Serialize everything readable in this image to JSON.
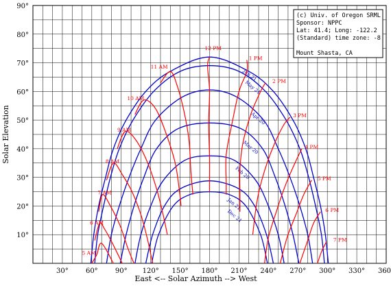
{
  "chart_data": {
    "type": "line",
    "xlabel": "East <-- Solar Azimuth --> West",
    "ylabel": "Solar Elevation",
    "xlim": [
      0,
      360
    ],
    "ylim": [
      0,
      90
    ],
    "x_ticks": [
      30,
      60,
      90,
      120,
      150,
      180,
      210,
      240,
      270,
      300,
      330,
      360
    ],
    "x_tick_labels": [
      "30°",
      "60°",
      "90°",
      "120°",
      "150°",
      "180°",
      "210°",
      "240°",
      "270°",
      "300°",
      "330°",
      "360°"
    ],
    "y_ticks": [
      10,
      20,
      30,
      40,
      50,
      60,
      70,
      80,
      90
    ],
    "y_tick_labels": [
      "10°",
      "20°",
      "30°",
      "40°",
      "50°",
      "60°",
      "70°",
      "80°",
      "90°"
    ],
    "grid": true,
    "info_box": [
      "(c) Univ. of Oregon SRML",
      "Sponsor: NPPC",
      "Lat: 41.4; Long: -122.2",
      "(Standard) time zone: -8",
      "",
      "Mount Shasta, CA"
    ],
    "date_series": [
      {
        "name": "Jun 21",
        "label_at": [
          214,
          67
        ],
        "points": [
          [
            59,
            0
          ],
          [
            62,
            10
          ],
          [
            67,
            20
          ],
          [
            74,
            30
          ],
          [
            82,
            40
          ],
          [
            95,
            50
          ],
          [
            115,
            60
          ],
          [
            140,
            67
          ],
          [
            180,
            72
          ],
          [
            220,
            67
          ],
          [
            245,
            60
          ],
          [
            265,
            50
          ],
          [
            278,
            40
          ],
          [
            286,
            30
          ],
          [
            293,
            20
          ],
          [
            298,
            10
          ],
          [
            301,
            0
          ]
        ]
      },
      {
        "name": "May 21",
        "label_at": [
          216,
          63
        ],
        "points": [
          [
            63,
            0
          ],
          [
            66,
            10
          ],
          [
            72,
            20
          ],
          [
            79,
            30
          ],
          [
            88,
            40
          ],
          [
            102,
            50
          ],
          [
            123,
            60
          ],
          [
            150,
            67
          ],
          [
            180,
            69
          ],
          [
            210,
            67
          ],
          [
            237,
            60
          ],
          [
            258,
            50
          ],
          [
            272,
            40
          ],
          [
            281,
            30
          ],
          [
            288,
            20
          ],
          [
            294,
            10
          ],
          [
            297,
            0
          ]
        ]
      },
      {
        "name": "Apr 20",
        "label_at": [
          222,
          52
        ],
        "points": [
          [
            75,
            0
          ],
          [
            80,
            10
          ],
          [
            88,
            20
          ],
          [
            98,
            30
          ],
          [
            110,
            40
          ],
          [
            125,
            50
          ],
          [
            152,
            58
          ],
          [
            180,
            60.5
          ],
          [
            208,
            58
          ],
          [
            235,
            50
          ],
          [
            250,
            40
          ],
          [
            262,
            30
          ],
          [
            272,
            20
          ],
          [
            280,
            10
          ],
          [
            285,
            0
          ]
        ]
      },
      {
        "name": "Mar 20",
        "label_at": [
          214,
          42
        ],
        "points": [
          [
            89,
            0
          ],
          [
            95,
            10
          ],
          [
            103,
            20
          ],
          [
            113,
            30
          ],
          [
            126,
            40
          ],
          [
            148,
            47
          ],
          [
            180,
            49
          ],
          [
            212,
            47
          ],
          [
            234,
            40
          ],
          [
            247,
            30
          ],
          [
            257,
            20
          ],
          [
            265,
            10
          ],
          [
            271,
            0
          ]
        ]
      },
      {
        "name": "Feb 20",
        "label_at": [
          206,
          33
        ],
        "points": [
          [
            104,
            0
          ],
          [
            110,
            10
          ],
          [
            120,
            20
          ],
          [
            133,
            29
          ],
          [
            155,
            36
          ],
          [
            180,
            37.5
          ],
          [
            205,
            36
          ],
          [
            227,
            29
          ],
          [
            240,
            20
          ],
          [
            250,
            10
          ],
          [
            256,
            0
          ]
        ]
      },
      {
        "name": "Jan 21",
        "label_at": [
          198,
          22
        ],
        "points": [
          [
            115,
            0
          ],
          [
            122,
            10
          ],
          [
            134,
            20
          ],
          [
            150,
            26
          ],
          [
            180,
            28.8
          ],
          [
            210,
            26
          ],
          [
            226,
            20
          ],
          [
            238,
            10
          ],
          [
            245,
            0
          ]
        ]
      },
      {
        "name": "Dec 21",
        "label_at": [
          198,
          18
        ],
        "points": [
          [
            121,
            0
          ],
          [
            128,
            10
          ],
          [
            143,
            20
          ],
          [
            160,
            24
          ],
          [
            180,
            25
          ],
          [
            200,
            24
          ],
          [
            217,
            20
          ],
          [
            232,
            10
          ],
          [
            239,
            0
          ]
        ]
      }
    ],
    "hour_series": [
      {
        "name": "5 AM",
        "label_at": [
          50,
          3
        ],
        "points": [
          [
            60,
            0
          ],
          [
            65,
            3
          ],
          [
            70,
            7
          ],
          [
            82,
            0
          ]
        ]
      },
      {
        "name": "6 AM",
        "label_at": [
          58,
          13.5
        ],
        "points": [
          [
            63,
            8
          ],
          [
            68,
            14
          ],
          [
            73,
            12
          ],
          [
            81,
            7
          ],
          [
            91,
            0
          ]
        ]
      },
      {
        "name": "7 AM",
        "label_at": [
          66,
          24
        ],
        "points": [
          [
            67,
            18
          ],
          [
            71,
            24
          ],
          [
            79,
            20
          ],
          [
            89,
            13
          ],
          [
            97,
            5
          ],
          [
            103,
            0
          ]
        ]
      },
      {
        "name": "8 AM",
        "label_at": [
          74,
          35
        ],
        "points": [
          [
            75,
            29
          ],
          [
            82,
            35
          ],
          [
            91,
            31
          ],
          [
            101,
            25
          ],
          [
            110,
            17
          ],
          [
            117,
            8
          ],
          [
            122,
            0
          ]
        ]
      },
      {
        "name": "9 AM",
        "label_at": [
          86,
          46
        ],
        "points": [
          [
            86,
            40
          ],
          [
            94,
            46
          ],
          [
            105,
            43
          ],
          [
            117,
            35
          ],
          [
            126,
            26
          ],
          [
            132,
            18
          ],
          [
            137,
            10
          ]
        ]
      },
      {
        "name": "10 AM",
        "label_at": [
          96,
          57
        ],
        "points": [
          [
            104,
            52
          ],
          [
            113,
            57
          ],
          [
            125,
            54
          ],
          [
            136,
            45
          ],
          [
            145,
            35
          ],
          [
            149,
            26
          ],
          [
            151,
            20
          ]
        ]
      },
      {
        "name": "11 AM",
        "label_at": [
          120,
          68
        ],
        "points": [
          [
            130,
            63
          ],
          [
            140,
            67
          ],
          [
            147,
            62
          ],
          [
            154,
            53
          ],
          [
            159,
            43
          ],
          [
            161,
            32
          ],
          [
            163,
            24
          ]
        ]
      },
      {
        "name": "12 PM",
        "label_at": [
          175,
          74.5
        ],
        "points": [
          [
            180,
            72
          ],
          [
            178,
            69
          ],
          [
            180,
            60
          ],
          [
            179,
            49
          ],
          [
            180,
            37
          ],
          [
            180,
            28
          ],
          [
            180,
            25
          ]
        ]
      },
      {
        "name": "1 PM",
        "label_at": [
          220,
          71
        ],
        "points": [
          [
            218,
            71
          ],
          [
            218,
            67
          ],
          [
            210,
            60
          ],
          [
            203,
            49
          ],
          [
            197,
            38
          ],
          [
            197,
            28
          ],
          [
            197,
            24
          ]
        ]
      },
      {
        "name": "2 PM",
        "label_at": [
          244,
          63
        ],
        "points": [
          [
            237,
            63
          ],
          [
            232,
            60
          ],
          [
            222,
            52
          ],
          [
            214,
            42
          ],
          [
            211,
            33
          ],
          [
            211,
            24
          ],
          [
            211,
            18
          ]
        ]
      },
      {
        "name": "3 PM",
        "label_at": [
          265,
          51
        ],
        "points": [
          [
            262,
            51
          ],
          [
            255,
            48
          ],
          [
            244,
            40
          ],
          [
            234,
            30
          ],
          [
            228,
            21
          ],
          [
            224,
            10
          ]
        ]
      },
      {
        "name": "4 PM",
        "label_at": [
          277,
          40
        ],
        "points": [
          [
            274,
            40
          ],
          [
            267,
            35
          ],
          [
            257,
            27
          ],
          [
            248,
            18
          ],
          [
            240,
            9
          ],
          [
            236,
            0
          ]
        ]
      },
      {
        "name": "5 PM",
        "label_at": [
          290,
          29
        ],
        "points": [
          [
            284,
            29
          ],
          [
            276,
            24
          ],
          [
            268,
            17
          ],
          [
            259,
            9
          ],
          [
            252,
            0
          ]
        ]
      },
      {
        "name": "6 PM",
        "label_at": [
          298,
          18
        ],
        "points": [
          [
            293,
            18
          ],
          [
            286,
            14
          ],
          [
            280,
            8
          ],
          [
            272,
            0
          ]
        ]
      },
      {
        "name": "7 PM",
        "label_at": [
          306,
          7.5
        ],
        "points": [
          [
            299,
            7.5
          ],
          [
            294,
            4
          ],
          [
            290,
            0
          ]
        ]
      }
    ],
    "colors": {
      "date_curves": "#0000cc",
      "hour_curves": "#ff0000",
      "grid": "#000000",
      "text": "#000000"
    }
  }
}
